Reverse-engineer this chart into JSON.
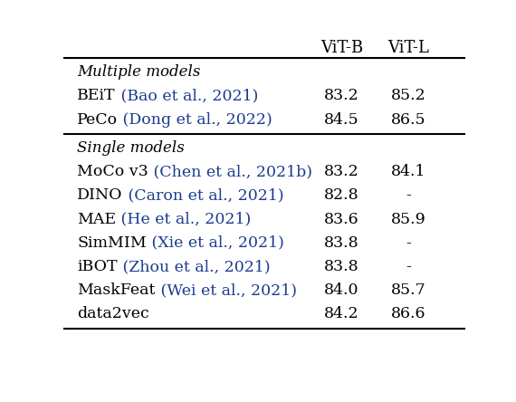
{
  "col_headers": [
    "ViT-B",
    "ViT-L"
  ],
  "section1_label": "Multiple models",
  "section1_rows": [
    {
      "name": "BEiT",
      "cite": " (Bao et al., 2021)",
      "vitb": "83.2",
      "vitl": "85.2"
    },
    {
      "name": "PeCo",
      "cite": " (Dong et al., 2022)",
      "vitb": "84.5",
      "vitl": "86.5"
    }
  ],
  "section2_label": "Single models",
  "section2_rows": [
    {
      "name": "MoCo v3",
      "cite": " (Chen et al., 2021b)",
      "vitb": "83.2",
      "vitl": "84.1"
    },
    {
      "name": "DINO",
      "cite": " (Caron et al., 2021)",
      "vitb": "82.8",
      "vitl": "-"
    },
    {
      "name": "MAE",
      "cite": " (He et al., 2021)",
      "vitb": "83.6",
      "vitl": "85.9"
    },
    {
      "name": "SimMIM",
      "cite": " (Xie et al., 2021)",
      "vitb": "83.8",
      "vitl": "-"
    },
    {
      "name": "iBOT",
      "cite": " (Zhou et al., 2021)",
      "vitb": "83.8",
      "vitl": "-"
    },
    {
      "name": "MaskFeat",
      "cite": " (Wei et al., 2021)",
      "vitb": "84.0",
      "vitl": "85.7"
    },
    {
      "name": "data2vec",
      "cite": "",
      "vitb": "84.2",
      "vitl": "86.6"
    }
  ],
  "cite_color": "#1a3c8f",
  "text_color": "#000000",
  "bg_color": "#ffffff",
  "font_size": 12.5,
  "header_font_size": 13.0,
  "italic_font_size": 12.0
}
